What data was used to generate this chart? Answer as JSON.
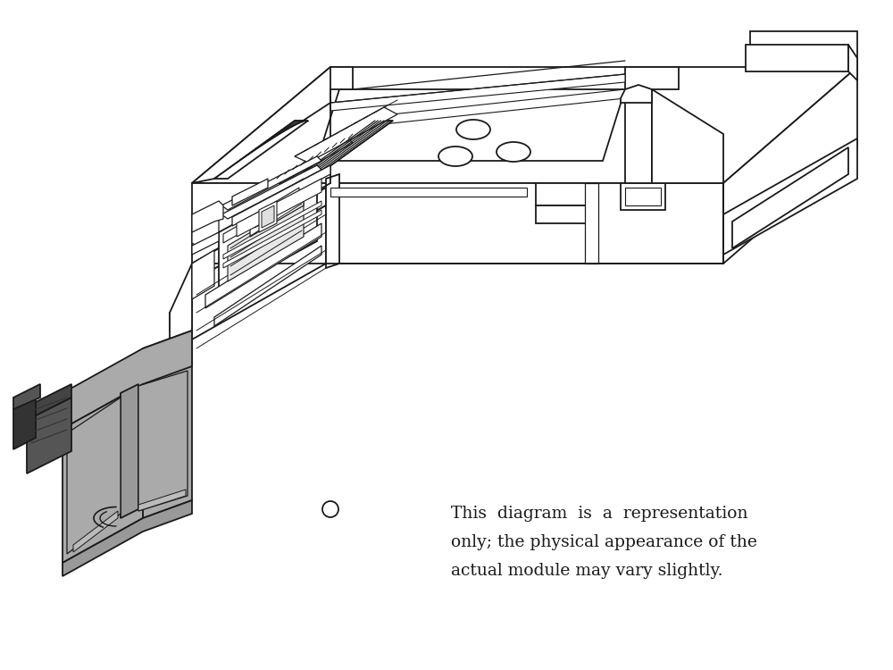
{
  "background_color": "#ffffff",
  "line_color": "#1a1a1a",
  "gray_fill": "#888888",
  "light_gray_fill": "#aaaaaa",
  "mid_gray": "#999999",
  "line_width": 1.3,
  "caption_line1": "This  diagram  is  a  representation",
  "caption_line2": "only; the physical appearance of the",
  "caption_line3": "actual module may vary slightly.",
  "caption_fontsize": 13.5
}
